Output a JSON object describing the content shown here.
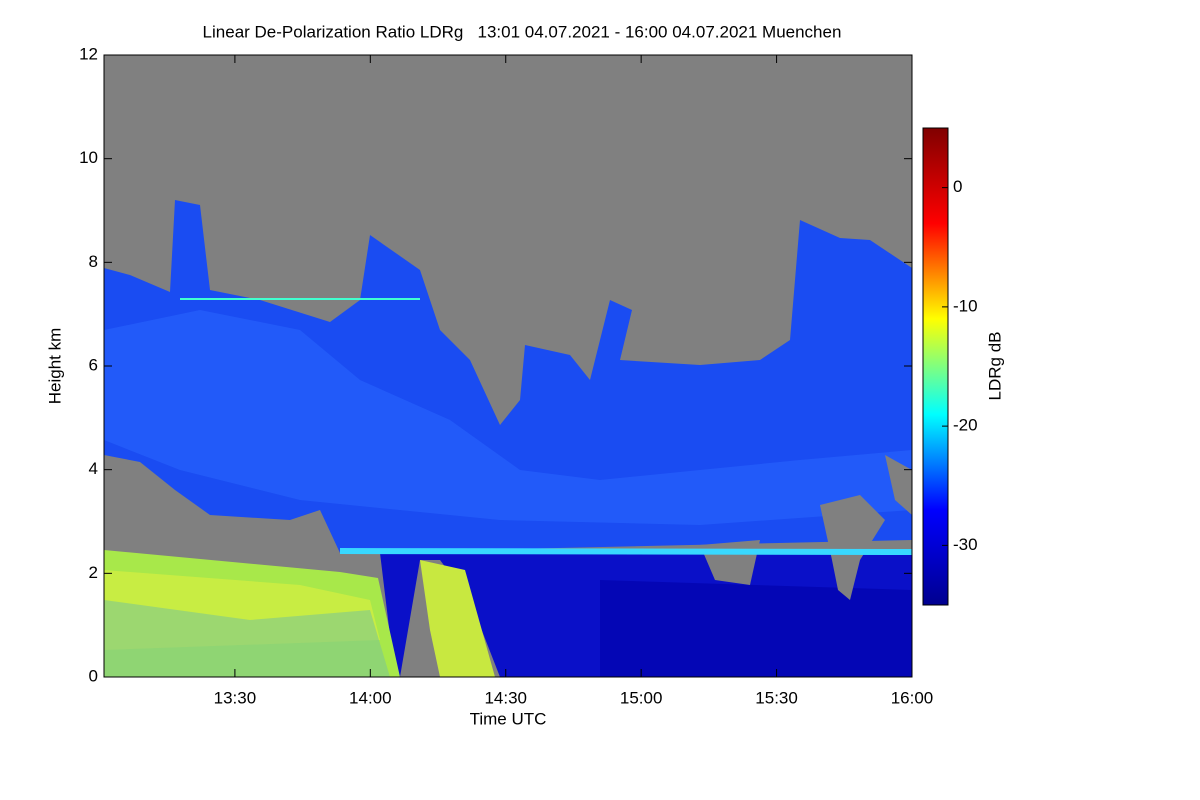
{
  "chart_data": {
    "type": "heatmap",
    "title": "Linear De-Polarization Ratio LDRg   13:01 04.07.2021 - 16:00 04.07.2021 Muenchen",
    "xlabel": "Time UTC",
    "ylabel": "Height km",
    "colorbar_label": "LDRg dB",
    "xlim": [
      13.0167,
      16.0
    ],
    "xticks": [
      {
        "value": 13.5,
        "label": "13:30"
      },
      {
        "value": 14.0,
        "label": "14:00"
      },
      {
        "value": 14.5,
        "label": "14:30"
      },
      {
        "value": 15.0,
        "label": "15:00"
      },
      {
        "value": 15.5,
        "label": "15:30"
      },
      {
        "value": 16.0,
        "label": "16:00"
      }
    ],
    "ylim": [
      0,
      12
    ],
    "yticks": [
      0,
      2,
      4,
      6,
      8,
      10,
      12
    ],
    "clim": [
      -35,
      5
    ],
    "cticks": [
      -30,
      -20,
      -10,
      0
    ],
    "colormap": [
      "#00008f",
      "#0000ff",
      "#00ffff",
      "#ffff00",
      "#ff0000",
      "#800000"
    ],
    "background_color": "#808080"
  }
}
